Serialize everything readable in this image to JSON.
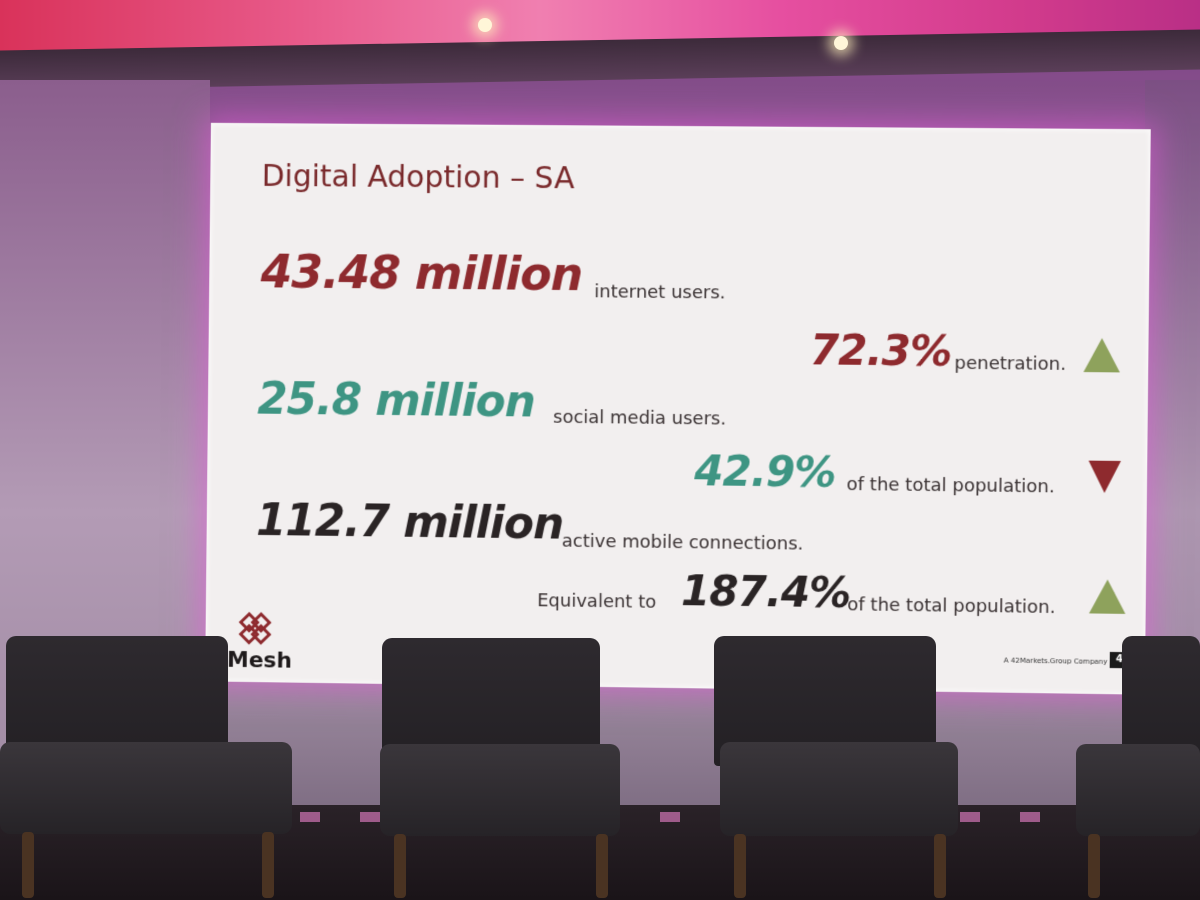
{
  "slide": {
    "title": "Digital Adoption – SA",
    "rows": [
      {
        "figure": "43.48 million",
        "caption": "internet users."
      },
      {
        "figure": "72.3%",
        "caption": "penetration.",
        "trend": "up"
      },
      {
        "figure": "25.8 million",
        "caption": "social media users."
      },
      {
        "figure": "42.9%",
        "caption": "of the total population.",
        "trend": "down"
      },
      {
        "figure": "112.7 million",
        "caption": "active mobile connections."
      },
      {
        "prefix": "Equivalent to",
        "figure": "187.4%",
        "caption": "of the total population.",
        "trend": "up"
      }
    ],
    "brand": "Mesh",
    "footer_note": "A 42Markets.Group Company",
    "corner_mark": "42"
  },
  "colors": {
    "accent_red": "#8e2a2e",
    "accent_teal": "#3e9583",
    "trend_up": "#8ea25c",
    "trend_down": "#8e2a2e",
    "text_dark": "#2a2425"
  }
}
